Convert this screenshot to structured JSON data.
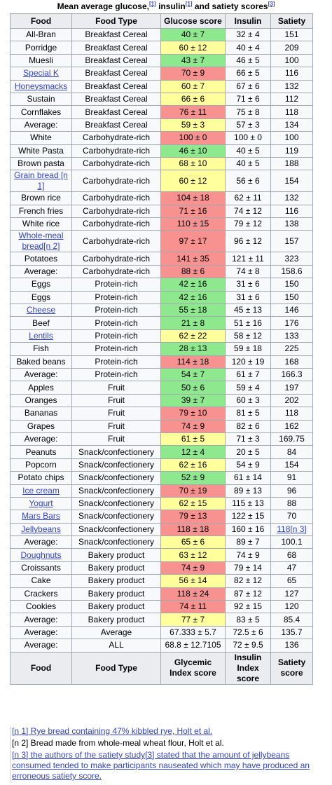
{
  "caption": [
    "Mean average glucose,",
    "[1]",
    " insulin",
    "[1]",
    " and satiety scores",
    "[3]"
  ],
  "header": [
    "Food",
    "Food Type",
    "Glucose score",
    "Insulin",
    "Satiety"
  ],
  "footer": [
    "Food",
    "Food Type",
    "Glycemic Index score",
    "Insulin Index score",
    "Satiety score"
  ],
  "rows": [
    {
      "food": "All-Bran",
      "type": "Breakfast Cereal",
      "glucose": "40 ± 7",
      "insulin": "32 ± 4",
      "satiety": "151",
      "color": "#8ee88e"
    },
    {
      "food": "Porridge",
      "type": "Breakfast Cereal",
      "glucose": "60 ± 12",
      "insulin": "40 ± 4",
      "satiety": "209",
      "color": "#ffff9c"
    },
    {
      "food": "Muesli",
      "type": "Breakfast Cereal",
      "glucose": "43 ± 7",
      "insulin": "46 ± 5",
      "satiety": "100",
      "color": "#8ee88e"
    },
    {
      "food": "Special K",
      "type": "Breakfast Cereal",
      "glucose": "70 ± 9",
      "insulin": "66 ± 5",
      "satiety": "116",
      "color": "#f79290",
      "food_link": true
    },
    {
      "food": "Honeysmacks",
      "type": "Breakfast Cereal",
      "glucose": "60 ± 7",
      "insulin": "67 ± 6",
      "satiety": "132",
      "color": "#ffff9c",
      "food_link": true
    },
    {
      "food": "Sustain",
      "type": "Breakfast Cereal",
      "glucose": "66 ± 6",
      "insulin": "71 ± 6",
      "satiety": "112",
      "color": "#ffff9c"
    },
    {
      "food": "Cornflakes",
      "type": "Breakfast Cereal",
      "glucose": "76 ± 11",
      "insulin": "75 ± 8",
      "satiety": "118",
      "color": "#f79290"
    },
    {
      "food": "Average:",
      "type": "Breakfast Cereal",
      "glucose": "59 ± 3",
      "insulin": "57 ± 3",
      "satiety": "134",
      "color": "#ffff9c"
    },
    {
      "food": "White",
      "type": "Carbohydrate-rich",
      "glucose": "100 ± 0",
      "insulin": "100 ± 0",
      "satiety": "100",
      "color": "#f79290"
    },
    {
      "food": "White Pasta",
      "type": "Carbohydrate-rich",
      "glucose": "46 ± 10",
      "insulin": "40 ± 5",
      "satiety": "119",
      "color": "#8ee88e"
    },
    {
      "food": "Brown pasta",
      "type": "Carbohydrate-rich",
      "glucose": "68 ± 10",
      "insulin": "40 ± 5",
      "satiety": "188",
      "color": "#ffff9c"
    },
    {
      "food": "Grain bread [n 1]",
      "type": "Carbohydrate-rich",
      "glucose": "60 ± 12",
      "insulin": "56 ± 6",
      "satiety": "154",
      "color": "#ffff9c",
      "food_link": true
    },
    {
      "food": "Brown rice",
      "type": "Carbohydrate-rich",
      "glucose": "104 ± 18",
      "insulin": "62 ± 11",
      "satiety": "132",
      "color": "#f79290"
    },
    {
      "food": "French fries",
      "type": "Carbohydrate-rich",
      "glucose": "71 ± 16",
      "insulin": "74 ± 12",
      "satiety": "116",
      "color": "#f79290"
    },
    {
      "food": "White rice",
      "type": "Carbohydrate-rich",
      "glucose": "110 ± 15",
      "insulin": "79 ± 12",
      "satiety": "138",
      "color": "#f79290"
    },
    {
      "food": "Whole-meal bread[n 2]",
      "type": "Carbohydrate-rich",
      "glucose": "97 ± 17",
      "insulin": "96 ± 12",
      "satiety": "157",
      "color": "#f79290",
      "food_link": true
    },
    {
      "food": "Potatoes",
      "type": "Carbohydrate-rich",
      "glucose": "141 ± 35",
      "insulin": "121 ± 11",
      "satiety": "323",
      "color": "#f79290"
    },
    {
      "food": "Average:",
      "type": "Carbohydrate-rich",
      "glucose": "88 ± 6",
      "insulin": "74 ± 8",
      "satiety": "158.6",
      "color": "#f79290"
    },
    {
      "food": "Eggs",
      "type": "Protein-rich",
      "glucose": "42 ± 16",
      "insulin": "31 ± 6",
      "satiety": "150",
      "color": "#8ee88e"
    },
    {
      "food": "Eggs",
      "type": "Protein-rich",
      "glucose": "42 ± 16",
      "insulin": "31 ± 6",
      "satiety": "150",
      "color": "#8ee88e"
    },
    {
      "food": "Cheese",
      "type": "Protein-rich",
      "glucose": "55 ± 18",
      "insulin": "45 ± 13",
      "satiety": "146",
      "color": "#8ee88e",
      "food_link": true
    },
    {
      "food": "Beef",
      "type": "Protein-rich",
      "glucose": "21 ± 8",
      "insulin": "51 ± 16",
      "satiety": "176",
      "color": "#8ee88e"
    },
    {
      "food": "Lentils",
      "type": "Protein-rich",
      "glucose": "62 ± 22",
      "insulin": "58 ± 12",
      "satiety": "133",
      "color": "#ffff9c",
      "food_link": true
    },
    {
      "food": "Fish",
      "type": "Protein-rich",
      "glucose": "28 ± 13",
      "insulin": "59 ± 18",
      "satiety": "225",
      "color": "#8ee88e"
    },
    {
      "food": "Baked beans",
      "type": "Protein-rich",
      "glucose": "114 ± 18",
      "insulin": "120 ± 19",
      "satiety": "168",
      "color": "#f79290"
    },
    {
      "food": "Average:",
      "type": "Protein-rich",
      "glucose": "54 ± 7",
      "insulin": "61 ± 7",
      "satiety": "166.3",
      "color": "#8ee88e"
    },
    {
      "food": "Apples",
      "type": "Fruit",
      "glucose": "50 ± 6",
      "insulin": "59 ± 4",
      "satiety": "197",
      "color": "#8ee88e"
    },
    {
      "food": "Oranges",
      "type": "Fruit",
      "glucose": "39 ± 7",
      "insulin": "60 ± 3",
      "satiety": "202",
      "color": "#8ee88e"
    },
    {
      "food": "Bananas",
      "type": "Fruit",
      "glucose": "79 ± 10",
      "insulin": "81 ± 5",
      "satiety": "118",
      "color": "#f79290"
    },
    {
      "food": "Grapes",
      "type": "Fruit",
      "glucose": "74 ± 9",
      "insulin": "82 ± 6",
      "satiety": "162",
      "color": "#f79290"
    },
    {
      "food": "Average:",
      "type": "Fruit",
      "glucose": "61 ± 5",
      "insulin": "71 ± 3",
      "satiety": "169.75",
      "color": "#ffff9c"
    },
    {
      "food": "Peanuts",
      "type": "Snack/confectionery",
      "glucose": "12 ± 4",
      "insulin": "20 ± 5",
      "satiety": "84",
      "color": "#8ee88e"
    },
    {
      "food": "Popcorn",
      "type": "Snack/confectionery",
      "glucose": "62 ± 16",
      "insulin": "54 ± 9",
      "satiety": "154",
      "color": "#ffff9c"
    },
    {
      "food": "Potato chips",
      "type": "Snack/confectionery",
      "glucose": "52 ± 9",
      "insulin": "61 ± 14",
      "satiety": "91",
      "color": "#8ee88e"
    },
    {
      "food": "Ice cream",
      "type": "Snack/confectionery",
      "glucose": "70 ± 19",
      "insulin": "89 ± 13",
      "satiety": "96",
      "color": "#f79290",
      "food_link": true
    },
    {
      "food": "Yogurt",
      "type": "Snack/confectionery",
      "glucose": "62 ± 15",
      "insulin": "115 ± 13",
      "satiety": "88",
      "color": "#ffff9c",
      "food_link": true
    },
    {
      "food": "Mars Bars",
      "type": "Snack/confectionery",
      "glucose": "79 ± 13",
      "insulin": "122 ± 15",
      "satiety": "70",
      "color": "#f79290",
      "food_link": true
    },
    {
      "food": "Jellybeans",
      "type": "Snack/confectionery",
      "glucose": "118 ± 18",
      "insulin": "160 ± 16",
      "satiety": "118[n 3]",
      "color": "#f79290",
      "food_link": true,
      "satiety_link": true
    },
    {
      "food": "Average:",
      "type": "Snack/confectionery",
      "glucose": "65 ± 6",
      "insulin": "89 ± 7",
      "satiety": "100.1",
      "color": "#ffff9c"
    },
    {
      "food": "Doughnuts",
      "type": "Bakery product",
      "glucose": "63 ± 12",
      "insulin": "74 ± 9",
      "satiety": "68",
      "color": "#ffff9c",
      "food_link": true
    },
    {
      "food": "Croissants",
      "type": "Bakery product",
      "glucose": "74 ± 9",
      "insulin": "79 ± 14",
      "satiety": "47",
      "color": "#f79290"
    },
    {
      "food": "Cake",
      "type": "Bakery product",
      "glucose": "56 ± 14",
      "insulin": "82 ± 12",
      "satiety": "65",
      "color": "#ffff9c"
    },
    {
      "food": "Crackers",
      "type": "Bakery product",
      "glucose": "118 ± 24",
      "insulin": "87 ± 12",
      "satiety": "127",
      "color": "#f79290"
    },
    {
      "food": "Cookies",
      "type": "Bakery product",
      "glucose": "74 ± 11",
      "insulin": "92 ± 15",
      "satiety": "120",
      "color": "#f79290"
    },
    {
      "food": "Average:",
      "type": "Bakery product",
      "glucose": "77 ± 7",
      "insulin": "83 ± 5",
      "satiety": "85.4",
      "color": "#ffff9c"
    },
    {
      "food": "Average:",
      "type": "Average",
      "glucose": "67.333 ± 5.7",
      "insulin": "72.5 ± 6",
      "satiety": "135.7",
      "color": null
    },
    {
      "food": "Average:",
      "type": "ALL",
      "glucose": "68.8 ± 12.7105",
      "insulin": "72 ± 9.5",
      "satiety": "136",
      "color": null
    }
  ],
  "notes": [
    {
      "text": "[n 1] Rye bread containing 47% kibbled rye, Holt et al.",
      "link": true
    },
    {
      "text": "[n 2] Bread made from whole-meal wheat flour, Holt et al.",
      "link": false
    },
    {
      "text": "[n 3] the authors of the satiety study[3] stated that the amount of jellybeans consumed tended to make participants nauseated which may have produced an erroneous satiety score.",
      "link": true
    }
  ]
}
